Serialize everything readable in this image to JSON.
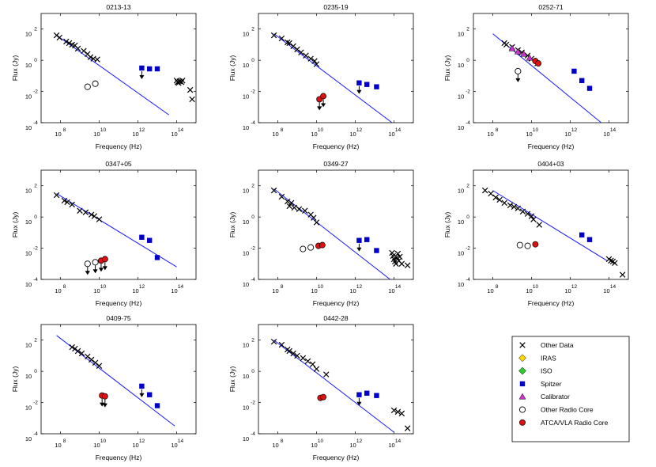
{
  "figure": {
    "xlabel": "Frequency (Hz)",
    "ylabel": "Flux (Jy)",
    "tick_base": "10"
  },
  "legend": {
    "placement": "bottom-right",
    "entries": [
      {
        "label": "Other Data",
        "marker": "cross",
        "color": "#000000"
      },
      {
        "label": "IRAS",
        "marker": "diamond",
        "color": "#ffd700"
      },
      {
        "label": "ISO",
        "marker": "diamond",
        "color": "#2ecc2e"
      },
      {
        "label": "Spitzer",
        "marker": "square",
        "color": "#0000c8"
      },
      {
        "label": "Calibrator",
        "marker": "triangle",
        "color": "#cc33cc"
      },
      {
        "label": "Other Radio Core",
        "marker": "open-circle",
        "color": "#ffffff"
      },
      {
        "label": "ATCA/VLA Radio Core",
        "marker": "filled-circle",
        "color": "#dd1111"
      }
    ]
  },
  "colors": {
    "fit_line": "#1a1aff",
    "spitzer": "#0000c8",
    "radio_core": "#dd1111",
    "calibrator": "#cc33cc",
    "axes": "#000000"
  },
  "chart_data": [
    {
      "type": "scatter",
      "title": "0213-13",
      "xlim": [
        7,
        15
      ],
      "ylim": [
        -4,
        3
      ],
      "xticks": [
        8,
        10,
        12,
        14
      ],
      "yticks": [
        2,
        0,
        -2,
        -4
      ],
      "xlabel": "Frequency (Hz)",
      "ylabel": "Flux (Jy)",
      "fit_line": [
        [
          7.8,
          1.6
        ],
        [
          13.6,
          -3.5
        ]
      ],
      "other_data": [
        [
          7.8,
          1.6
        ],
        [
          7.95,
          1.45
        ],
        [
          8.3,
          1.2
        ],
        [
          8.45,
          1.1
        ],
        [
          8.6,
          1.0
        ],
        [
          8.75,
          0.95
        ],
        [
          8.9,
          0.75
        ],
        [
          9.2,
          0.6
        ],
        [
          9.4,
          0.4
        ],
        [
          9.55,
          0.2
        ],
        [
          9.7,
          0.1
        ],
        [
          9.9,
          0.05
        ],
        [
          14.0,
          -1.3
        ],
        [
          14.05,
          -1.4
        ],
        [
          14.1,
          -1.45
        ],
        [
          14.15,
          -1.35
        ],
        [
          14.25,
          -1.4
        ],
        [
          14.3,
          -1.3
        ],
        [
          14.7,
          -1.9
        ],
        [
          14.8,
          -2.5
        ]
      ],
      "spitzer": [
        [
          12.2,
          -0.5
        ],
        [
          12.6,
          -0.55
        ],
        [
          13.0,
          -0.55
        ]
      ],
      "spitzer_upper_limits": [
        [
          12.2,
          -0.5
        ]
      ],
      "calibrator": [],
      "other_radio_core": [
        [
          9.4,
          -1.7
        ],
        [
          9.8,
          -1.5
        ]
      ],
      "other_radio_core_upper_limits": [],
      "atca_vla_core": [],
      "atca_vla_core_upper_limits": []
    },
    {
      "type": "scatter",
      "title": "0235-19",
      "xlim": [
        7,
        15
      ],
      "ylim": [
        -4,
        3
      ],
      "xticks": [
        8,
        10,
        12,
        14
      ],
      "yticks": [
        2,
        0,
        -2,
        -4
      ],
      "xlabel": "Frequency (Hz)",
      "ylabel": "Flux (Jy)",
      "fit_line": [
        [
          7.8,
          1.7
        ],
        [
          13.9,
          -4.0
        ]
      ],
      "other_data": [
        [
          7.8,
          1.6
        ],
        [
          8.2,
          1.4
        ],
        [
          8.5,
          1.15
        ],
        [
          8.6,
          1.1
        ],
        [
          8.8,
          0.9
        ],
        [
          9.0,
          0.7
        ],
        [
          9.2,
          0.5
        ],
        [
          9.45,
          0.3
        ],
        [
          9.7,
          0.1
        ],
        [
          9.9,
          -0.05
        ],
        [
          10.0,
          -0.25
        ]
      ],
      "spitzer": [
        [
          12.2,
          -1.45
        ],
        [
          12.6,
          -1.55
        ],
        [
          13.1,
          -1.7
        ]
      ],
      "spitzer_upper_limits": [
        [
          12.2,
          -1.45
        ]
      ],
      "calibrator": [],
      "other_radio_core": [],
      "other_radio_core_upper_limits": [],
      "atca_vla_core": [
        [
          10.15,
          -2.5
        ],
        [
          10.35,
          -2.3
        ]
      ],
      "atca_vla_core_upper_limits": [
        [
          10.15,
          -2.5
        ],
        [
          10.35,
          -2.3
        ]
      ]
    },
    {
      "type": "scatter",
      "title": "0252-71",
      "xlim": [
        7,
        15
      ],
      "ylim": [
        -4,
        3
      ],
      "xticks": [
        8,
        10,
        12,
        14
      ],
      "yticks": [
        2,
        0,
        -2,
        -4
      ],
      "xlabel": "Frequency (Hz)",
      "ylabel": "Flux (Jy)",
      "fit_line": [
        [
          8.0,
          1.7
        ],
        [
          13.6,
          -4.0
        ]
      ],
      "other_data": [
        [
          8.6,
          1.1
        ],
        [
          8.7,
          1.0
        ],
        [
          9.0,
          0.85
        ],
        [
          9.3,
          0.65
        ],
        [
          9.5,
          0.5
        ],
        [
          9.8,
          0.3
        ],
        [
          10.0,
          0.1
        ],
        [
          10.3,
          -0.2
        ]
      ],
      "spitzer": [
        [
          12.2,
          -0.7
        ],
        [
          12.6,
          -1.3
        ],
        [
          13.0,
          -1.8
        ]
      ],
      "spitzer_upper_limits": [],
      "calibrator": [
        [
          9.0,
          0.75
        ],
        [
          9.3,
          0.55
        ],
        [
          9.6,
          0.4
        ],
        [
          9.9,
          0.15
        ]
      ],
      "other_radio_core": [
        [
          9.3,
          -0.7
        ]
      ],
      "other_radio_core_upper_limits": [
        [
          9.3,
          -0.7
        ]
      ],
      "atca_vla_core": [
        [
          10.2,
          -0.05
        ],
        [
          10.35,
          -0.2
        ]
      ],
      "atca_vla_core_upper_limits": []
    },
    {
      "type": "scatter",
      "title": "0347+05",
      "xlim": [
        7,
        15
      ],
      "ylim": [
        -4,
        3
      ],
      "xticks": [
        8,
        10,
        12,
        14
      ],
      "yticks": [
        2,
        0,
        -2,
        -4
      ],
      "xlabel": "Frequency (Hz)",
      "ylabel": "Flux (Jy)",
      "fit_line": [
        [
          7.8,
          1.5
        ],
        [
          14.0,
          -3.2
        ]
      ],
      "other_data": [
        [
          7.8,
          1.4
        ],
        [
          8.2,
          1.05
        ],
        [
          8.35,
          0.95
        ],
        [
          8.6,
          0.8
        ],
        [
          9.0,
          0.4
        ],
        [
          9.3,
          0.3
        ],
        [
          9.6,
          0.15
        ],
        [
          9.75,
          0.05
        ],
        [
          10.0,
          -0.15
        ]
      ],
      "spitzer": [
        [
          12.2,
          -1.3
        ],
        [
          12.6,
          -1.5
        ],
        [
          13.0,
          -2.6
        ]
      ],
      "spitzer_upper_limits": [],
      "calibrator": [],
      "other_radio_core": [
        [
          9.4,
          -3.0
        ],
        [
          9.8,
          -2.9
        ]
      ],
      "other_radio_core_upper_limits": [
        [
          9.4,
          -3.0
        ],
        [
          9.8,
          -2.9
        ]
      ],
      "atca_vla_core": [
        [
          10.1,
          -2.8
        ],
        [
          10.3,
          -2.7
        ]
      ],
      "atca_vla_core_upper_limits": [
        [
          10.1,
          -2.8
        ],
        [
          10.3,
          -2.7
        ]
      ]
    },
    {
      "type": "scatter",
      "title": "0349-27",
      "xlim": [
        7,
        15
      ],
      "ylim": [
        -4,
        3
      ],
      "xticks": [
        8,
        10,
        12,
        14
      ],
      "yticks": [
        2,
        0,
        -2,
        -4
      ],
      "xlabel": "Frequency (Hz)",
      "ylabel": "Flux (Jy)",
      "fit_line": [
        [
          7.8,
          1.8
        ],
        [
          13.8,
          -4.0
        ]
      ],
      "other_data": [
        [
          7.8,
          1.7
        ],
        [
          8.2,
          1.3
        ],
        [
          8.5,
          1.0
        ],
        [
          8.6,
          0.7
        ],
        [
          8.7,
          0.9
        ],
        [
          8.85,
          0.6
        ],
        [
          9.1,
          0.5
        ],
        [
          9.4,
          0.4
        ],
        [
          9.7,
          0.15
        ],
        [
          9.85,
          -0.05
        ],
        [
          10.0,
          -0.35
        ],
        [
          13.9,
          -2.3
        ],
        [
          13.95,
          -2.5
        ],
        [
          14.0,
          -2.7
        ],
        [
          14.05,
          -2.85
        ],
        [
          14.1,
          -3.0
        ],
        [
          14.15,
          -2.6
        ],
        [
          14.2,
          -2.35
        ],
        [
          14.25,
          -2.8
        ],
        [
          14.3,
          -2.55
        ],
        [
          14.4,
          -3.0
        ],
        [
          14.7,
          -3.1
        ]
      ],
      "spitzer": [
        [
          12.2,
          -1.5
        ],
        [
          12.6,
          -1.45
        ],
        [
          13.1,
          -2.15
        ]
      ],
      "spitzer_upper_limits": [
        [
          12.2,
          -1.5
        ]
      ],
      "calibrator": [],
      "other_radio_core": [
        [
          9.3,
          -2.05
        ],
        [
          9.7,
          -1.95
        ]
      ],
      "other_radio_core_upper_limits": [],
      "atca_vla_core": [
        [
          10.1,
          -1.85
        ],
        [
          10.3,
          -1.8
        ]
      ],
      "atca_vla_core_upper_limits": []
    },
    {
      "type": "scatter",
      "title": "0404+03",
      "xlim": [
        7,
        15
      ],
      "ylim": [
        -4,
        3
      ],
      "xticks": [
        8,
        10,
        12,
        14
      ],
      "yticks": [
        2,
        0,
        -2,
        -4
      ],
      "xlabel": "Frequency (Hz)",
      "ylabel": "Flux (Jy)",
      "fit_line": [
        [
          8.0,
          1.7
        ],
        [
          13.9,
          -2.8
        ]
      ],
      "other_data": [
        [
          7.6,
          1.7
        ],
        [
          7.9,
          1.5
        ],
        [
          8.15,
          1.25
        ],
        [
          8.35,
          1.1
        ],
        [
          8.6,
          0.9
        ],
        [
          8.9,
          0.75
        ],
        [
          9.1,
          0.65
        ],
        [
          9.3,
          0.55
        ],
        [
          9.55,
          0.35
        ],
        [
          9.8,
          0.2
        ],
        [
          10.0,
          0.05
        ],
        [
          10.1,
          -0.15
        ],
        [
          10.4,
          -0.5
        ],
        [
          14.0,
          -2.7
        ],
        [
          14.1,
          -2.8
        ],
        [
          14.2,
          -2.85
        ],
        [
          14.3,
          -2.95
        ],
        [
          14.7,
          -3.7
        ]
      ],
      "spitzer": [
        [
          12.6,
          -1.15
        ],
        [
          13.0,
          -1.45
        ]
      ],
      "spitzer_upper_limits": [],
      "calibrator": [],
      "other_radio_core": [
        [
          9.4,
          -1.8
        ],
        [
          9.8,
          -1.85
        ]
      ],
      "other_radio_core_upper_limits": [],
      "atca_vla_core": [
        [
          10.2,
          -1.75
        ]
      ],
      "atca_vla_core_upper_limits": []
    },
    {
      "type": "scatter",
      "title": "0409-75",
      "xlim": [
        7,
        15
      ],
      "ylim": [
        -4,
        3
      ],
      "xticks": [
        8,
        10,
        12,
        14
      ],
      "yticks": [
        2,
        0,
        -2,
        -4
      ],
      "xlabel": "Frequency (Hz)",
      "ylabel": "Flux (Jy)",
      "fit_line": [
        [
          7.8,
          2.3
        ],
        [
          13.9,
          -3.5
        ]
      ],
      "other_data": [
        [
          8.6,
          1.55
        ],
        [
          8.75,
          1.45
        ],
        [
          8.9,
          1.3
        ],
        [
          9.1,
          1.15
        ],
        [
          9.4,
          0.95
        ],
        [
          9.6,
          0.75
        ],
        [
          9.8,
          0.55
        ],
        [
          10.0,
          0.35
        ]
      ],
      "spitzer": [
        [
          12.2,
          -0.95
        ],
        [
          12.6,
          -1.5
        ],
        [
          13.0,
          -2.2
        ]
      ],
      "spitzer_upper_limits": [
        [
          12.2,
          -0.95
        ]
      ],
      "calibrator": [],
      "other_radio_core": [],
      "other_radio_core_upper_limits": [],
      "atca_vla_core": [
        [
          10.15,
          -1.55
        ],
        [
          10.3,
          -1.6
        ]
      ],
      "atca_vla_core_upper_limits": [
        [
          10.15,
          -1.55
        ],
        [
          10.3,
          -1.6
        ]
      ]
    },
    {
      "type": "scatter",
      "title": "0442-28",
      "xlim": [
        7,
        15
      ],
      "ylim": [
        -4,
        3
      ],
      "xticks": [
        8,
        10,
        12,
        14
      ],
      "yticks": [
        2,
        0,
        -2,
        -4
      ],
      "xlabel": "Frequency (Hz)",
      "ylabel": "Flux (Jy)",
      "fit_line": [
        [
          7.8,
          2.0
        ],
        [
          14.0,
          -3.9
        ]
      ],
      "other_data": [
        [
          7.8,
          1.9
        ],
        [
          8.2,
          1.7
        ],
        [
          8.5,
          1.4
        ],
        [
          8.6,
          1.3
        ],
        [
          8.8,
          1.15
        ],
        [
          9.0,
          1.0
        ],
        [
          9.3,
          0.85
        ],
        [
          9.55,
          0.65
        ],
        [
          9.8,
          0.45
        ],
        [
          10.0,
          0.15
        ],
        [
          10.5,
          -0.2
        ],
        [
          14.0,
          -2.5
        ],
        [
          14.2,
          -2.6
        ],
        [
          14.4,
          -2.7
        ],
        [
          14.7,
          -3.65
        ]
      ],
      "spitzer": [
        [
          12.2,
          -1.5
        ],
        [
          12.6,
          -1.4
        ],
        [
          13.1,
          -1.55
        ]
      ],
      "spitzer_upper_limits": [
        [
          12.2,
          -1.5
        ]
      ],
      "calibrator": [],
      "other_radio_core": [],
      "other_radio_core_upper_limits": [],
      "atca_vla_core": [
        [
          10.2,
          -1.7
        ],
        [
          10.35,
          -1.65
        ]
      ],
      "atca_vla_core_upper_limits": []
    }
  ]
}
